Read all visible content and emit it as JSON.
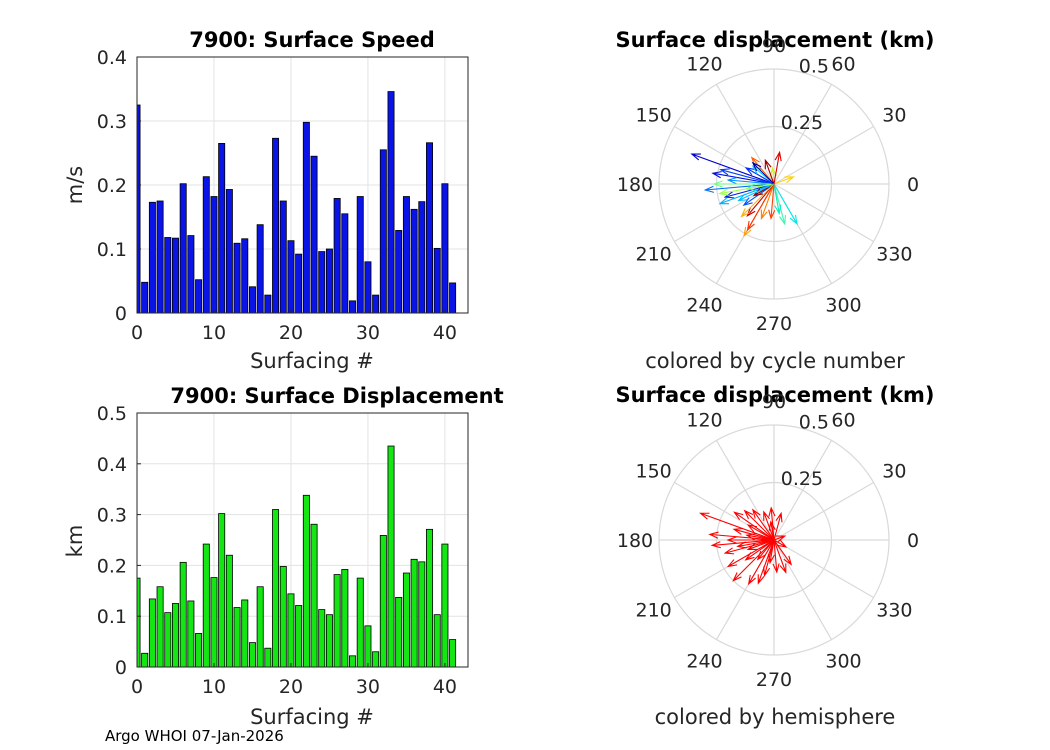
{
  "footer": "Argo WHOI 07-Jan-2026",
  "colors": {
    "speed_bars": "#0a14e6",
    "disp_bars": "#14e614",
    "polar_grid": "#d9d9d9",
    "hemisphere_arrows": "#ff0000"
  },
  "chart_data": [
    {
      "type": "bar",
      "title": "7900: Surface Speed",
      "xlabel": "Surfacing #",
      "ylabel": "m/s",
      "xlim": [
        0,
        43
      ],
      "ylim": [
        0,
        0.4
      ],
      "xticks": [
        "0",
        "10",
        "20",
        "30",
        "40"
      ],
      "xtick_values": [
        0,
        10,
        20,
        30,
        40
      ],
      "yticks": [
        "0",
        "0.1",
        "0.2",
        "0.3",
        "0.4"
      ],
      "ytick_values": [
        0,
        0.1,
        0.2,
        0.3,
        0.4
      ],
      "x": [
        0,
        1,
        2,
        3,
        4,
        5,
        6,
        7,
        8,
        9,
        10,
        11,
        12,
        13,
        14,
        15,
        16,
        17,
        18,
        19,
        20,
        21,
        22,
        23,
        24,
        25,
        26,
        27,
        28,
        29,
        30,
        31,
        32,
        33,
        34,
        35,
        36,
        37,
        38,
        39,
        40,
        41
      ],
      "values": [
        0.325,
        0.048,
        0.173,
        0.175,
        0.118,
        0.117,
        0.202,
        0.121,
        0.052,
        0.213,
        0.182,
        0.265,
        0.193,
        0.109,
        0.116,
        0.041,
        0.138,
        0.028,
        0.273,
        0.175,
        0.113,
        0.092,
        0.298,
        0.245,
        0.096,
        0.1,
        0.179,
        0.155,
        0.019,
        0.182,
        0.08,
        0.028,
        0.255,
        0.346,
        0.129,
        0.182,
        0.162,
        0.174,
        0.266,
        0.101,
        0.202,
        0.047
      ]
    },
    {
      "type": "polar_compass",
      "title": "Surface displacement (km)",
      "caption": "colored by cycle number",
      "rlim": [
        0,
        0.5
      ],
      "r_tick_labels": [
        "0.25",
        "0.5"
      ],
      "r_tick_values": [
        0.25,
        0.5
      ],
      "angle_tick_labels": [
        "0",
        "30",
        "60",
        "90",
        "120",
        "150",
        "180",
        "210",
        "240",
        "270",
        "300",
        "330"
      ],
      "vectors": [
        {
          "angle": 160,
          "r": 0.38,
          "color": "#0000c8"
        },
        {
          "angle": 170,
          "r": 0.27,
          "color": "#0010d8"
        },
        {
          "angle": 195,
          "r": 0.22,
          "color": "#0020e0"
        },
        {
          "angle": 150,
          "r": 0.14,
          "color": "#0030f0"
        },
        {
          "angle": 215,
          "r": 0.16,
          "color": "#0050ff"
        },
        {
          "angle": 185,
          "r": 0.3,
          "color": "#0070ff"
        },
        {
          "angle": 175,
          "r": 0.2,
          "color": "#0090ff"
        },
        {
          "angle": 200,
          "r": 0.25,
          "color": "#00b0ff"
        },
        {
          "angle": 140,
          "r": 0.12,
          "color": "#00d0ff"
        },
        {
          "angle": 300,
          "r": 0.2,
          "color": "#00e8e8"
        },
        {
          "angle": 190,
          "r": 0.12,
          "color": "#20f0d0"
        },
        {
          "angle": 285,
          "r": 0.18,
          "color": "#40f8b0"
        },
        {
          "angle": 180,
          "r": 0.26,
          "color": "#70ff80"
        },
        {
          "angle": 190,
          "r": 0.24,
          "color": "#a0ff50"
        },
        {
          "angle": 95,
          "r": 0.07,
          "color": "#d0f020"
        },
        {
          "angle": 20,
          "r": 0.09,
          "color": "#ffd000"
        },
        {
          "angle": 240,
          "r": 0.26,
          "color": "#ffa000"
        },
        {
          "angle": 250,
          "r": 0.16,
          "color": "#ff8000"
        },
        {
          "angle": 130,
          "r": 0.15,
          "color": "#ff6000"
        },
        {
          "angle": 240,
          "r": 0.23,
          "color": "#ff3000"
        },
        {
          "angle": 80,
          "r": 0.14,
          "color": "#e00000"
        },
        {
          "angle": 230,
          "r": 0.18,
          "color": "#c00000"
        },
        {
          "angle": 110,
          "r": 0.11,
          "color": "#a00000"
        },
        {
          "angle": 210,
          "r": 0.1,
          "color": "#8b0000"
        },
        {
          "angle": 135,
          "r": 0.13,
          "color": "#0000a0"
        },
        {
          "angle": 165,
          "r": 0.24,
          "color": "#0040ff"
        },
        {
          "angle": 205,
          "r": 0.17,
          "color": "#00c0ff"
        },
        {
          "angle": 280,
          "r": 0.13,
          "color": "#00f0c0"
        },
        {
          "angle": 225,
          "r": 0.2,
          "color": "#ffb000"
        },
        {
          "angle": 265,
          "r": 0.15,
          "color": "#ff4000"
        }
      ]
    },
    {
      "type": "bar",
      "title": "7900: Surface Displacement",
      "xlabel": "Surfacing #",
      "ylabel": "km",
      "xlim": [
        0,
        43
      ],
      "ylim": [
        0,
        0.5
      ],
      "xticks": [
        "0",
        "10",
        "20",
        "30",
        "40"
      ],
      "xtick_values": [
        0,
        10,
        20,
        30,
        40
      ],
      "yticks": [
        "0",
        "0.1",
        "0.2",
        "0.3",
        "0.4",
        "0.5"
      ],
      "ytick_values": [
        0,
        0.1,
        0.2,
        0.3,
        0.4,
        0.5
      ],
      "x": [
        0,
        1,
        2,
        3,
        4,
        5,
        6,
        7,
        8,
        9,
        10,
        11,
        12,
        13,
        14,
        15,
        16,
        17,
        18,
        19,
        20,
        21,
        22,
        23,
        24,
        25,
        26,
        27,
        28,
        29,
        30,
        31,
        32,
        33,
        34,
        35,
        36,
        37,
        38,
        39,
        40,
        41
      ],
      "values": [
        0.175,
        0.027,
        0.134,
        0.158,
        0.107,
        0.125,
        0.206,
        0.13,
        0.066,
        0.242,
        0.176,
        0.302,
        0.22,
        0.117,
        0.132,
        0.048,
        0.158,
        0.037,
        0.31,
        0.198,
        0.144,
        0.121,
        0.338,
        0.281,
        0.113,
        0.103,
        0.182,
        0.192,
        0.022,
        0.175,
        0.081,
        0.03,
        0.259,
        0.435,
        0.137,
        0.185,
        0.212,
        0.207,
        0.271,
        0.103,
        0.242,
        0.054
      ]
    },
    {
      "type": "polar_compass",
      "title": "Surface displacement (km)",
      "caption": "colored by hemisphere",
      "rlim": [
        0,
        0.5
      ],
      "r_tick_labels": [
        "0.25",
        "0.5"
      ],
      "r_tick_values": [
        0.25,
        0.5
      ],
      "angle_tick_labels": [
        "0",
        "30",
        "60",
        "90",
        "120",
        "150",
        "180",
        "210",
        "240",
        "270",
        "300",
        "330"
      ],
      "vectors": [
        {
          "angle": 160,
          "r": 0.34,
          "color": "#ff0000"
        },
        {
          "angle": 175,
          "r": 0.28,
          "color": "#ff0000"
        },
        {
          "angle": 185,
          "r": 0.27,
          "color": "#ff0000"
        },
        {
          "angle": 195,
          "r": 0.22,
          "color": "#ff0000"
        },
        {
          "angle": 210,
          "r": 0.23,
          "color": "#ff0000"
        },
        {
          "angle": 225,
          "r": 0.25,
          "color": "#ff0000"
        },
        {
          "angle": 240,
          "r": 0.22,
          "color": "#ff0000"
        },
        {
          "angle": 255,
          "r": 0.16,
          "color": "#ff0000"
        },
        {
          "angle": 275,
          "r": 0.14,
          "color": "#ff0000"
        },
        {
          "angle": 290,
          "r": 0.15,
          "color": "#ff0000"
        },
        {
          "angle": 305,
          "r": 0.13,
          "color": "#ff0000"
        },
        {
          "angle": 330,
          "r": 0.06,
          "color": "#ff0000"
        },
        {
          "angle": 20,
          "r": 0.05,
          "color": "#ff0000"
        },
        {
          "angle": 75,
          "r": 0.12,
          "color": "#ff0000"
        },
        {
          "angle": 95,
          "r": 0.14,
          "color": "#ff0000"
        },
        {
          "angle": 110,
          "r": 0.13,
          "color": "#ff0000"
        },
        {
          "angle": 125,
          "r": 0.16,
          "color": "#ff0000"
        },
        {
          "angle": 135,
          "r": 0.18,
          "color": "#ff0000"
        },
        {
          "angle": 145,
          "r": 0.21,
          "color": "#ff0000"
        },
        {
          "angle": 150,
          "r": 0.13,
          "color": "#ff0000"
        },
        {
          "angle": 165,
          "r": 0.18,
          "color": "#ff0000"
        },
        {
          "angle": 170,
          "r": 0.12,
          "color": "#ff0000"
        },
        {
          "angle": 180,
          "r": 0.2,
          "color": "#ff0000"
        },
        {
          "angle": 190,
          "r": 0.16,
          "color": "#ff0000"
        },
        {
          "angle": 200,
          "r": 0.12,
          "color": "#ff0000"
        },
        {
          "angle": 215,
          "r": 0.15,
          "color": "#ff0000"
        },
        {
          "angle": 230,
          "r": 0.11,
          "color": "#ff0000"
        },
        {
          "angle": 250,
          "r": 0.2,
          "color": "#ff0000"
        },
        {
          "angle": 260,
          "r": 0.1,
          "color": "#ff0000"
        },
        {
          "angle": 100,
          "r": 0.08,
          "color": "#ff0000"
        }
      ]
    }
  ]
}
